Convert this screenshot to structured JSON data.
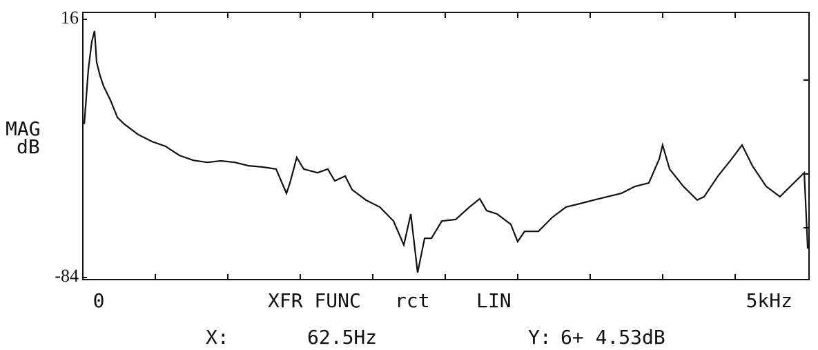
{
  "chart_data": {
    "type": "line",
    "ylabel": [
      "MAG",
      "dB"
    ],
    "annotations": {
      "mode": "XFR FUNC",
      "window": "rct",
      "scale": "LIN",
      "x_prefix": "X:",
      "x_readout": "62.5Hz",
      "y_prefix": "Y:",
      "y_readout": "6+ 4.53dB"
    },
    "xlim": [
      0,
      5000
    ],
    "xticks": [
      {
        "value": 0,
        "label": "0"
      },
      {
        "value": 5000,
        "label": "5kHz"
      }
    ],
    "ylim": [
      -84,
      16
    ],
    "yticks": [
      -84,
      16
    ],
    "series": [
      {
        "color": "#111111",
        "x": [
          10,
          38,
          62,
          81,
          95,
          119,
          143,
          190,
          238,
          285,
          380,
          475,
          570,
          665,
          760,
          856,
          951,
          1046,
          1141,
          1236,
          1331,
          1402,
          1426,
          1473,
          1521,
          1616,
          1687,
          1735,
          1806,
          1854,
          1949,
          2044,
          2139,
          2210,
          2258,
          2305,
          2353,
          2400,
          2472,
          2567,
          2662,
          2733,
          2780,
          2852,
          2947,
          2994,
          3042,
          3137,
          3232,
          3327,
          3422,
          3517,
          3612,
          3707,
          3802,
          3897,
          3969,
          3992,
          4040,
          4135,
          4230,
          4278,
          4373,
          4468,
          4539,
          4610,
          4705,
          4800,
          4895,
          4967,
          4991
        ],
        "values": [
          -24.6,
          -3.3,
          7.4,
          11.5,
          -0.6,
          -5.9,
          -9.9,
          -15.3,
          -22,
          -24.6,
          -28.6,
          -31.3,
          -33.2,
          -36.7,
          -38.6,
          -39.4,
          -38.8,
          -39.4,
          -40.7,
          -41.2,
          -42,
          -51.4,
          -47.4,
          -37.5,
          -42,
          -43.4,
          -42,
          -46.6,
          -44.7,
          -50,
          -54,
          -56.7,
          -62.1,
          -71.4,
          -59.4,
          -82.1,
          -68.8,
          -68.8,
          -62.1,
          -61.5,
          -56.7,
          -53.5,
          -58.1,
          -59.4,
          -63.4,
          -70.1,
          -66.1,
          -66.1,
          -60.7,
          -56.7,
          -55.4,
          -54,
          -52.7,
          -51.4,
          -48.7,
          -47.4,
          -38,
          -32.7,
          -42,
          -48.7,
          -54,
          -52.7,
          -44.7,
          -38,
          -32.7,
          -40.7,
          -48.7,
          -52.7,
          -47.4,
          -43.4,
          -72.8
        ]
      }
    ]
  }
}
